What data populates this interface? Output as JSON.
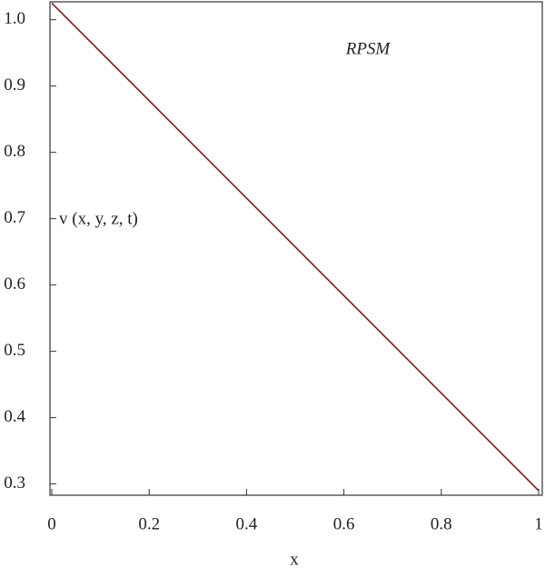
{
  "chart_data": {
    "type": "line",
    "x": [
      0,
      1
    ],
    "series": [
      {
        "name": "v (x, y, z, t)",
        "color": "#7b1a1f",
        "values": [
          1.025,
          0.29
        ]
      }
    ],
    "annotations": [
      "RPSM"
    ],
    "xlabel": "x",
    "xlim": [
      0,
      1
    ],
    "xticks": [
      0,
      0.2,
      0.4,
      0.6,
      0.8,
      1
    ],
    "ylim": [
      0.283,
      1.027
    ],
    "yticks": [
      0.3,
      0.4,
      0.5,
      0.6,
      0.7,
      0.8,
      0.9,
      {
        "value": 1,
        "label": "1.0"
      }
    ]
  }
}
